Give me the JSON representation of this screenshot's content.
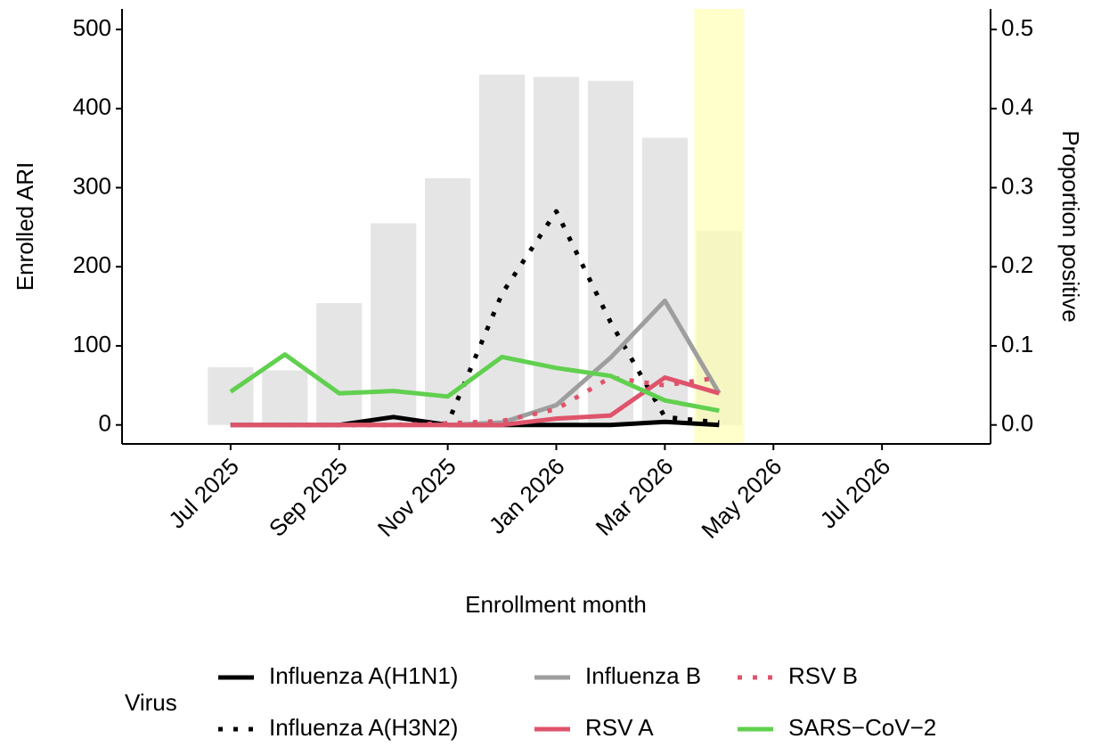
{
  "chart_data": {
    "type": "combo",
    "x_label": "Enrollment month",
    "y_label": "Enrolled ARI",
    "y2_label": "Proportion positive",
    "legend_title": "Virus",
    "legend": "bottom",
    "x": [
      "Jul 2025",
      "Aug 2025",
      "Sep 2025",
      "Oct 2025",
      "Nov 2025",
      "Dec 2025",
      "Jan 2026",
      "Feb 2026",
      "Mar 2026",
      "Apr 2026"
    ],
    "xlim": [
      "May 2025",
      "Sep 2026"
    ],
    "xticks": [
      "Jul 2025",
      "Sep 2025",
      "Nov 2025",
      "Jan 2026",
      "Mar 2026",
      "May 2026",
      "Jul 2026"
    ],
    "ylim": [
      -24,
      526
    ],
    "yticks": [
      0,
      100,
      200,
      300,
      400,
      500
    ],
    "y2lim": [
      -0.024,
      0.526
    ],
    "y2ticks": [
      {
        "value": 0,
        "label": "0.0"
      },
      0.1,
      0.2,
      0.3,
      0.4,
      0.5
    ],
    "highlight": "Apr 2026",
    "highlight_color": "#ffffb0",
    "bars": {
      "color": "#e5e5e5",
      "values": [
        73,
        69,
        154,
        255,
        312,
        443,
        440,
        435,
        363,
        245
      ]
    },
    "series": [
      {
        "name": "Influenza A(H1N1)",
        "color": "#000000",
        "dash": "solid",
        "axis": "y2",
        "values": [
          0,
          0,
          0,
          0.01,
          0,
          0,
          0,
          0,
          0.004,
          0
        ]
      },
      {
        "name": "Influenza A(H3N2)",
        "color": "#000000",
        "dash": "dotted",
        "axis": "y2",
        "values": [
          0,
          0,
          0,
          0,
          0.002,
          0.166,
          0.27,
          0.13,
          0.01,
          0.003
        ]
      },
      {
        "name": "Influenza B",
        "color": "#9e9e9e",
        "dash": "solid",
        "axis": "y2",
        "values": [
          0,
          0,
          0,
          0,
          0,
          0.003,
          0.025,
          0.085,
          0.157,
          0.04
        ]
      },
      {
        "name": "RSV A",
        "color": "#df536b",
        "dash": "solid",
        "axis": "y2",
        "values": [
          0,
          0,
          0,
          0,
          0,
          0,
          0.008,
          0.012,
          0.06,
          0.04
        ]
      },
      {
        "name": "RSV B",
        "color": "#df536b",
        "dash": "dotted",
        "axis": "y2",
        "values": [
          0,
          0,
          0,
          0,
          0.002,
          0.005,
          0.02,
          0.06,
          0.05,
          0.06
        ]
      },
      {
        "name": "SARS−CoV−2",
        "color": "#61d04f",
        "dash": "solid",
        "axis": "y2",
        "values": [
          0.042,
          0.089,
          0.04,
          0.043,
          0.036,
          0.086,
          0.072,
          0.062,
          0.031,
          0.018
        ]
      }
    ]
  }
}
